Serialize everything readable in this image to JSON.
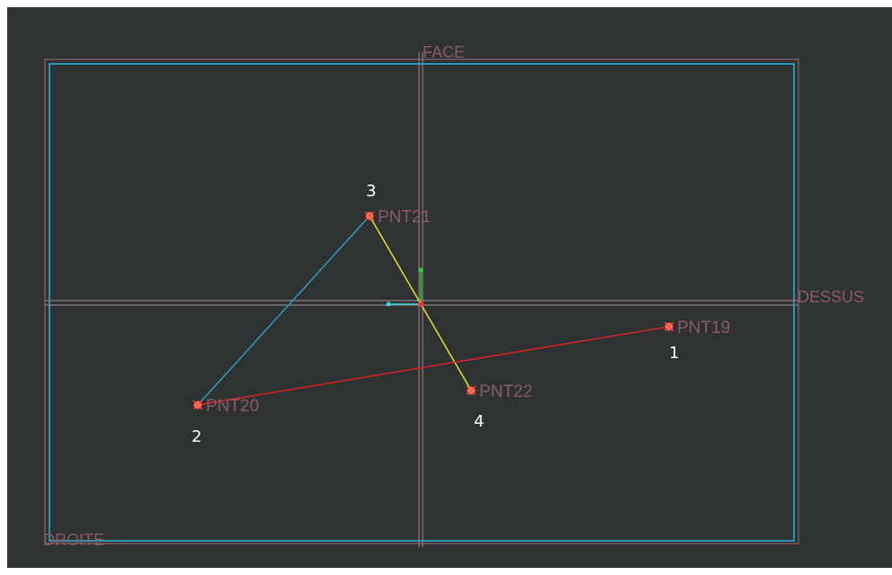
{
  "planes": {
    "top": "FACE",
    "right": "DESSUS",
    "bottom_left": "DROITE"
  },
  "points": [
    {
      "id": "pnt19",
      "label": "PNT19",
      "order": "1"
    },
    {
      "id": "pnt20",
      "label": "PNT20",
      "order": "2"
    },
    {
      "id": "pnt21",
      "label": "PNT21",
      "order": "3"
    },
    {
      "id": "pnt22",
      "label": "PNT22",
      "order": "4"
    }
  ],
  "colors": {
    "background": "#2e3233",
    "frame_outer": "#7d5a62",
    "frame_inner": "#29b6e0",
    "axis_lines": "#8f7c83",
    "segment_blue": "#2a9bc4",
    "segment_yellow": "#e6dc29",
    "segment_red": "#d8232f",
    "point_marker": "#ff5a3c",
    "triad_green": "#2fd23a",
    "triad_cyan": "#35d9d6",
    "label_text": "#8a5a63",
    "order_text": "#ffffff"
  },
  "icons": {
    "point_marker": "datum-point-icon",
    "triad": "coordinate-system-icon"
  }
}
